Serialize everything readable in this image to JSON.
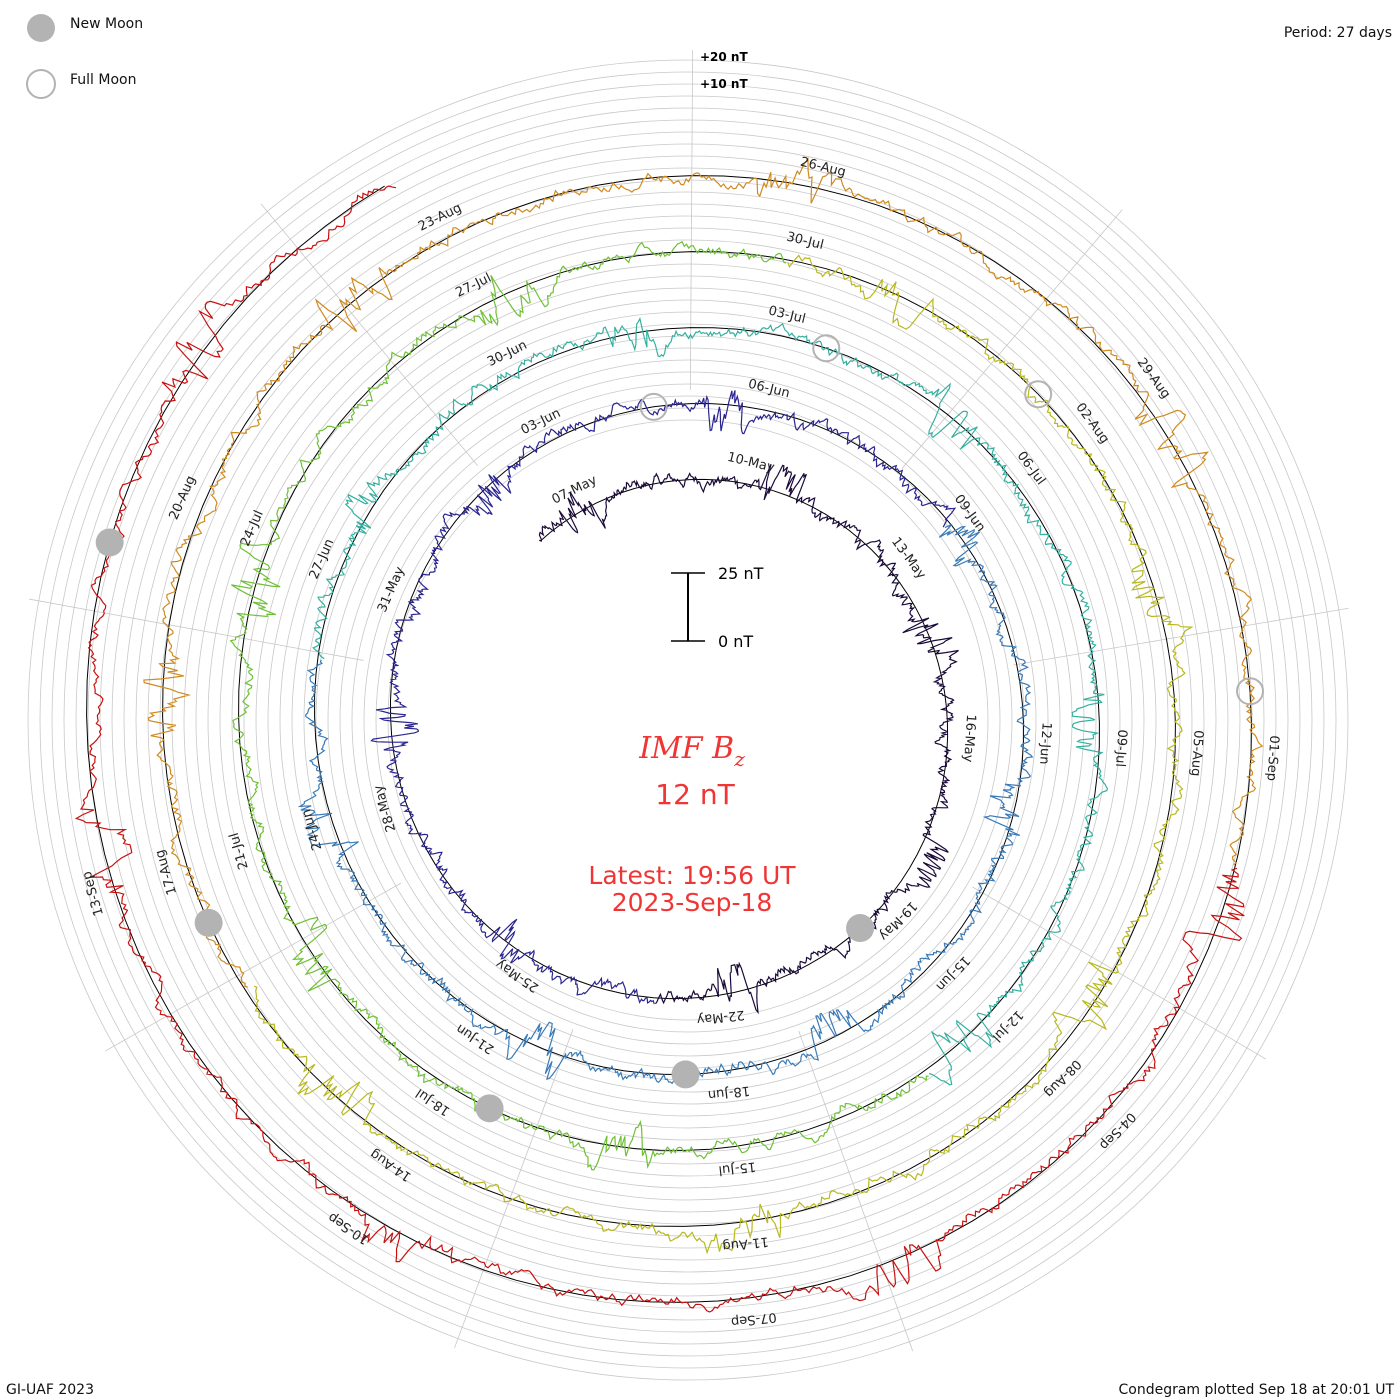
{
  "legend": {
    "new_moon_label": "New Moon",
    "full_moon_label": "Full Moon"
  },
  "header": {
    "period_label": "Period: 27 days"
  },
  "footer": {
    "credit": "GI-UAF 2023",
    "plotted": "Condegram plotted Sep 18 at 20:01 UT"
  },
  "center": {
    "title": "IMF B",
    "title_subscript": "z",
    "value": "12 nT",
    "latest_label": "Latest: 19:56 UT",
    "latest_date": "2023-Sep-18"
  },
  "scale_bar": {
    "top_label": "25 nT",
    "bottom_label": "0 nT"
  },
  "ring_scale": {
    "upper": "+20 nT",
    "lower": "+10 nT"
  },
  "colors": {
    "title": "#f03535",
    "moon_fill": "#b3b3b3",
    "grid": "#c8c8c8",
    "baseline": "#000000"
  },
  "chart_data": {
    "type": "line",
    "title": "IMF Bz",
    "period_days": 27,
    "start_date": "2023-05-06",
    "end_date": "2023-09-18",
    "units": "nT",
    "series_colors": [
      "#1a0a3a",
      "#2a2590",
      "#3a7ab8",
      "#35b0a0",
      "#6ec035",
      "#b8b820",
      "#d08a20",
      "#c81010"
    ],
    "date_labels": [
      "07-May",
      "10-May",
      "13-May",
      "16-May",
      "19-May",
      "22-May",
      "25-May",
      "28-May",
      "31-May",
      "03-Jun",
      "06-Jun",
      "09-Jun",
      "12-Jun",
      "15-Jun",
      "18-Jun",
      "21-Jun",
      "24-Jun",
      "27-Jun",
      "30-Jun",
      "03-Jul",
      "06-Jul",
      "09-Jul",
      "12-Jul",
      "15-Jul",
      "18-Jul",
      "21-Jul",
      "24-Jul",
      "27-Jul",
      "30-Jul",
      "02-Aug",
      "05-Aug",
      "08-Aug",
      "11-Aug",
      "14-Aug",
      "17-Aug",
      "20-Aug",
      "23-Aug",
      "26-Aug",
      "29-Aug",
      "01-Sep",
      "04-Sep",
      "07-Sep",
      "10-Sep",
      "13-Sep"
    ],
    "new_moons": [
      "2023-05-19",
      "2023-06-18",
      "2023-07-17",
      "2023-08-16",
      "2023-09-15"
    ],
    "full_moons": [
      "2023-06-04",
      "2023-07-03",
      "2023-08-01",
      "2023-08-31"
    ],
    "bz_range_nT": [
      -25,
      25
    ],
    "latest_value_nT": 12
  }
}
